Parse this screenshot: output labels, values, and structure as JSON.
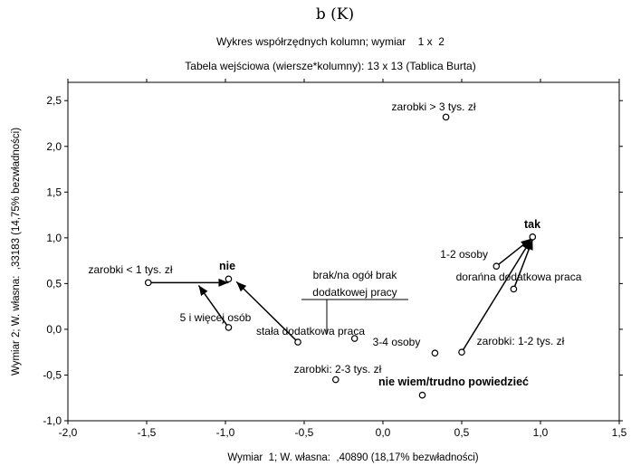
{
  "chart_data": {
    "type": "scatter",
    "title": "b (K)",
    "subtitle_1": "Wykres współrzędnych kolumn; wymiar    1 x  2",
    "subtitle_2": "Tabela wejściowa (wiersze*kolumny): 13 x 13 (Tablica Burta)",
    "xlabel": "Wymiar  1; W. własna:  ,40890 (18,17% bezwładności)",
    "ylabel": "Wymiar 2; W. własna:  ,33183 (14,75% bezwładności)",
    "xlim": [
      -2.0,
      1.5
    ],
    "ylim": [
      -1.0,
      2.7
    ],
    "xticks": [
      "-2,0",
      "-1,5",
      "-1,0",
      "-0,5",
      "0,0",
      "0,5",
      "1,0",
      "1,5"
    ],
    "yticks": [
      "-1,0",
      "-0,5",
      "0,0",
      "0,5",
      "1,0",
      "1,5",
      "2,0",
      "2,5"
    ],
    "points": [
      {
        "label": "zarobki > 3 tys. zł",
        "x": 0.4,
        "y": 2.32,
        "bold": false
      },
      {
        "label": "tak",
        "x": 0.95,
        "y": 1.01,
        "bold": true
      },
      {
        "label": "1-2 osoby",
        "x": 0.72,
        "y": 0.69,
        "bold": false
      },
      {
        "label": "dorańna dodatkowa praca",
        "x": 0.83,
        "y": 0.44,
        "bold": false
      },
      {
        "label": "zarobki < 1 tys. zł",
        "x": -1.49,
        "y": 0.51,
        "bold": false
      },
      {
        "label": "nie",
        "x": -0.98,
        "y": 0.55,
        "bold": true
      },
      {
        "label": "5 i więcej osób",
        "x": -0.98,
        "y": 0.02,
        "bold": false
      },
      {
        "label": "stała dodatkowa praca",
        "x": -0.54,
        "y": -0.14,
        "bold": false
      },
      {
        "label": "brak/na ogół brak dodatkowej pracy",
        "x": -0.18,
        "y": -0.1,
        "bold": false
      },
      {
        "label": "3-4 osoby",
        "x": 0.33,
        "y": -0.26,
        "bold": false
      },
      {
        "label": "zarobki: 1-2 tys. zł",
        "x": 0.5,
        "y": -0.25,
        "bold": false
      },
      {
        "label": "zarobki: 2-3 tys. zł",
        "x": -0.3,
        "y": -0.55,
        "bold": false
      },
      {
        "label": "nie wiem/trudno powiedzieć",
        "x": 0.25,
        "y": -0.72,
        "bold": true
      }
    ],
    "arrows": [
      {
        "from": [
          -1.49,
          0.51
        ],
        "to": [
          -0.98,
          0.51
        ]
      },
      {
        "from": [
          -0.98,
          0.02
        ],
        "to": [
          -1.17,
          0.48
        ]
      },
      {
        "from": [
          -0.54,
          -0.14
        ],
        "to": [
          -0.93,
          0.52
        ]
      },
      {
        "from": [
          0.5,
          -0.25
        ],
        "to": [
          0.94,
          0.98
        ]
      },
      {
        "from": [
          0.83,
          0.44
        ],
        "to": [
          0.95,
          0.98
        ]
      },
      {
        "from": [
          0.72,
          0.69
        ],
        "to": [
          0.94,
          0.99
        ]
      }
    ],
    "grid": false,
    "legend": "none"
  }
}
